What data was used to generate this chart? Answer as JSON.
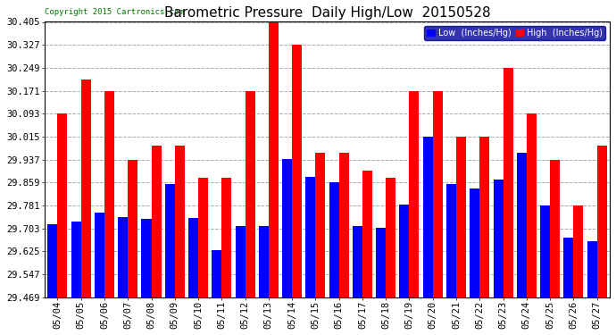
{
  "title": "Barometric Pressure  Daily High/Low  20150528",
  "copyright": "Copyright 2015 Cartronics.com",
  "legend_low": "Low  (Inches/Hg)",
  "legend_high": "High  (Inches/Hg)",
  "dates": [
    "05/04",
    "05/05",
    "05/06",
    "05/07",
    "05/08",
    "05/09",
    "05/10",
    "05/11",
    "05/12",
    "05/13",
    "05/14",
    "05/15",
    "05/16",
    "05/17",
    "05/18",
    "05/19",
    "05/20",
    "05/21",
    "05/22",
    "05/23",
    "05/24",
    "05/25",
    "05/26",
    "05/27"
  ],
  "low": [
    29.718,
    29.726,
    29.755,
    29.742,
    29.736,
    29.854,
    29.738,
    29.63,
    29.71,
    29.71,
    29.94,
    29.878,
    29.86,
    29.71,
    29.706,
    29.783,
    30.015,
    29.854,
    29.84,
    29.87,
    29.96,
    29.78,
    29.67,
    29.66
  ],
  "high": [
    30.093,
    30.21,
    30.171,
    29.937,
    29.985,
    29.985,
    29.874,
    29.874,
    30.171,
    30.405,
    30.327,
    29.96,
    29.96,
    29.9,
    29.875,
    30.171,
    30.171,
    30.015,
    30.015,
    30.249,
    30.093,
    29.937,
    29.781,
    29.985
  ],
  "ylim_min": 29.469,
  "ylim_max": 30.405,
  "yticks": [
    29.469,
    29.547,
    29.625,
    29.703,
    29.781,
    29.859,
    29.937,
    30.015,
    30.093,
    30.171,
    30.249,
    30.327,
    30.405
  ],
  "bar_width": 0.42,
  "color_low": "#0000ff",
  "color_high": "#ff0000",
  "bg_color": "#ffffff",
  "grid_color": "#aaaaaa",
  "title_font": "DejaVu Sans",
  "title_fontsize": 11,
  "tick_fontsize": 7.5,
  "copyright_color": "#007700"
}
